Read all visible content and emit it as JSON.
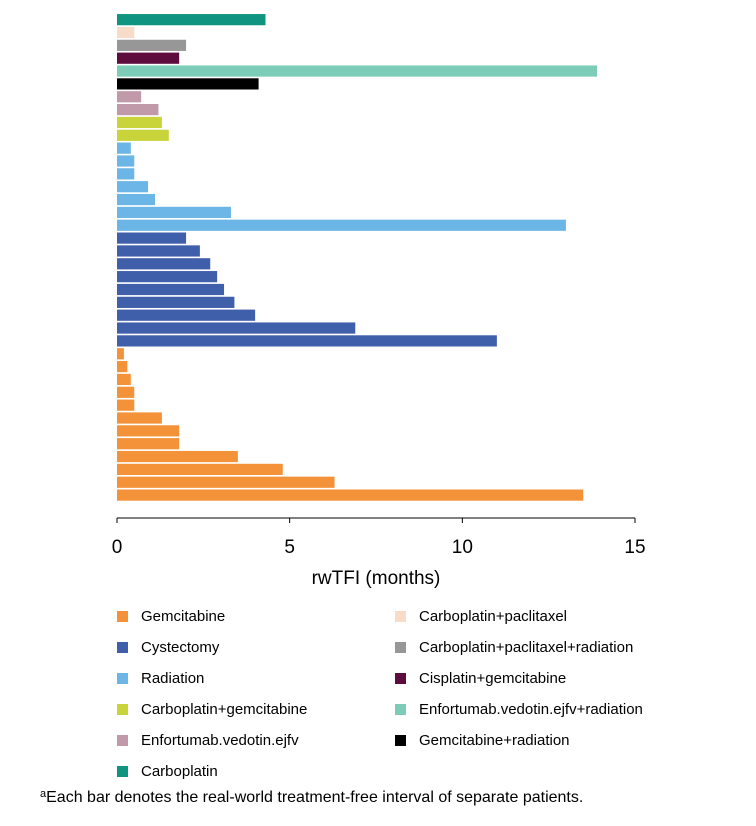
{
  "chart_data": {
    "type": "bar",
    "orientation": "horizontal",
    "xlabel": "rwTFI (months)",
    "xlim": [
      0,
      15
    ],
    "xticks": [
      0,
      5,
      10,
      15
    ],
    "grid": false,
    "legend_position": "bottom",
    "series": [
      {
        "name": "Gemcitabine",
        "color": "#F4923A",
        "values": [
          13.5,
          6.3,
          4.8,
          3.5,
          1.8,
          1.8,
          1.3,
          0.5,
          0.5,
          0.4,
          0.3,
          0.2
        ]
      },
      {
        "name": "Cystectomy",
        "color": "#3F5FAA",
        "values": [
          11.0,
          6.9,
          4.0,
          3.4,
          3.1,
          2.9,
          2.7,
          2.4,
          2.0
        ]
      },
      {
        "name": "Radiation",
        "color": "#6BB6E6",
        "values": [
          13.0,
          3.3,
          1.1,
          0.9,
          0.5,
          0.5,
          0.4
        ]
      },
      {
        "name": "Carboplatin+gemcitabine",
        "color": "#C9D43A",
        "values": [
          1.5,
          1.3
        ]
      },
      {
        "name": "Enfortumab.vedotin.ejfv",
        "color": "#C09AA8",
        "values": [
          1.2,
          0.7
        ]
      },
      {
        "name": "Gemcitabine+radiation",
        "color": "#000000",
        "values": [
          4.1
        ]
      },
      {
        "name": "Enfortumab.vedotin.ejfv+radiation",
        "color": "#7DCCB7",
        "values": [
          13.9
        ]
      },
      {
        "name": "Cisplatin+gemcitabine",
        "color": "#5E0B3E",
        "values": [
          1.8
        ]
      },
      {
        "name": "Carboplatin+paclitaxel+radiation",
        "color": "#979797",
        "values": [
          2.0
        ]
      },
      {
        "name": "Carboplatin+paclitaxel",
        "color": "#F8DCC8",
        "values": [
          0.5
        ]
      },
      {
        "name": "Carboplatin",
        "color": "#0E9480",
        "values": [
          4.3
        ]
      }
    ]
  },
  "legend": {
    "items": [
      {
        "label": "Gemcitabine",
        "color": "#F4923A"
      },
      {
        "label": "Cystectomy",
        "color": "#3F5FAA"
      },
      {
        "label": "Radiation",
        "color": "#6BB6E6"
      },
      {
        "label": "Carboplatin+gemcitabine",
        "color": "#C9D43A"
      },
      {
        "label": "Enfortumab.vedotin.ejfv",
        "color": "#C09AA8"
      },
      {
        "label": "Carboplatin",
        "color": "#0E9480"
      },
      {
        "label": "Carboplatin+paclitaxel",
        "color": "#F8DCC8"
      },
      {
        "label": "Carboplatin+paclitaxel+radiation",
        "color": "#979797"
      },
      {
        "label": "Cisplatin+gemcitabine",
        "color": "#5E0B3E"
      },
      {
        "label": "Enfortumab.vedotin.ejfv+radiation",
        "color": "#7DCCB7"
      },
      {
        "label": "Gemcitabine+radiation",
        "color": "#000000"
      }
    ]
  },
  "footnote": {
    "marker": "a",
    "text": "Each bar denotes the real-world treatment-free interval of separate patients."
  }
}
